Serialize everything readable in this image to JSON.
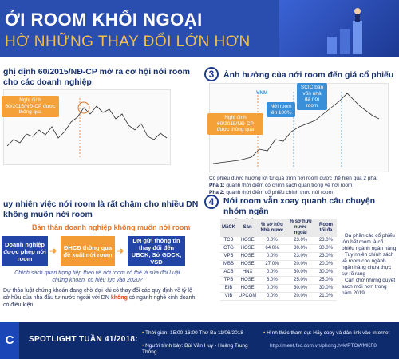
{
  "header": {
    "title": "ỞI ROOM KHỐI NGOẠI",
    "subtitle": "HỜ NHỮNG THAY ĐỔI LỚN HƠN"
  },
  "sec1": {
    "title_l1": "ghị định 60/2015/NĐ-CP mở ra cơ hội nới room",
    "title_l2": "cho các doanh nghiệp",
    "callout": "Nghị định 60/2015/NĐ-CP được thông qua"
  },
  "sec3": {
    "number": "3",
    "title": "Ảnh hưởng của nới room đến giá cổ phiếu",
    "chart_label": "VNM",
    "callout_a": "Nghị định 60/2015/NĐ-CP được thông qua",
    "callout_b": "Nới room lên 100%",
    "callout_c": "SCIC bán vốn nhà đã nới room",
    "note1": "Cổ phiếu được hưởng lợi từ quá trình nới room được thể hiện qua 2 pha:",
    "pha1_label": "Pha 1:",
    "pha1": "quanh thời điểm có chính sách quan trọng về nới room",
    "pha2_label": "Pha 2:",
    "pha2": "quanh thời điểm cổ phiếu chính thức nới room"
  },
  "sec2": {
    "title_l1": "uy nhiên việc nới room là rất chậm cho nhiều DN",
    "title_l2": "không muốn nới room",
    "orange_label": "Bản thân doanh nghiệp không muốn nới room",
    "box1": "Doanh nghiệp được phép nới room",
    "box2": "ĐHCĐ thông qua đề xuất nới room",
    "box3": "DN gửi thông tin thay đổi đến UBCK, Sở GDCK, VSD",
    "italic": "Chính sách quan trọng tiếp theo về nới room có thể là sửa đổi Luật chứng khoán, có hiệu lực vào 2020?",
    "note_l1": "Dự thảo luật chứng khoán đang chờ đợi khi có thay đổi các quy định về tỷ lệ",
    "note_l2_a": "sở hữu của nhà đầu tư nước ngoài với DN ",
    "note_l2_b": "không",
    "note_l2_c": " có ngành nghề kinh doanh",
    "note_l3": "có điều kiện"
  },
  "sec4": {
    "number": "4",
    "title_l1": "Nới room vẫn xoay quanh câu chuyện nhóm ngân",
    "title_l2": "ngân hàng",
    "table": {
      "headers": [
        "MãCK",
        "Sàn",
        "% sở hữu Nhà nước",
        "% sở hữu nước ngoài",
        "Room tối đa"
      ],
      "rows": [
        [
          "TCB",
          "HOSE",
          "0.0%",
          "23.0%",
          "23.0%"
        ],
        [
          "CTG",
          "HOSE",
          "64.0%",
          "30.0%",
          "30.0%"
        ],
        [
          "VPB",
          "HOSE",
          "0.0%",
          "23.0%",
          "23.0%"
        ],
        [
          "MBB",
          "HOSE",
          "27.0%",
          "20.0%",
          "20.0%"
        ],
        [
          "ACB",
          "HNX",
          "0.0%",
          "30.0%",
          "30.0%"
        ],
        [
          "TPB",
          "HOSE",
          "6.0%",
          "25.0%",
          "25.0%"
        ],
        [
          "EIB",
          "HOSE",
          "0.0%",
          "30.0%",
          "30.0%"
        ],
        [
          "VIB",
          "UPCOM",
          "0.0%",
          "20.0%",
          "21.0%"
        ]
      ]
    },
    "bullets": [
      "Đa phần các cổ phiếu lớn hết room là cổ phiếu ngành ngân hàng",
      "Tuy nhiên chính sách về room cho ngành ngân hàng chưa thực sự rõ ràng",
      "Cần chờ những quyết sách mới hơn trong năm 2019"
    ]
  },
  "footer": {
    "logo": "C",
    "spotlight": "SPOTLIGHT TUẦN 41/2018:",
    "time": "Thời gian: 15:00-16:00 Thứ Ba 11/06/2018",
    "presenter": "Người trình bày: Bùi Văn Huy - Hoàng Trung Thông",
    "register": "Hình thức tham dự: Hãy copy và dán link vào Internet",
    "link": "http://meet.fsc.com.vn/phong.hvk/PTOWMKF8"
  }
}
